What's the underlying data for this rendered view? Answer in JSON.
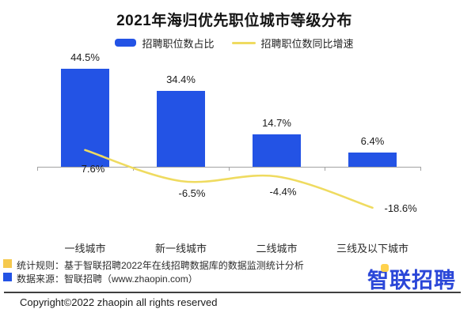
{
  "title": "2021年海归优先职位城市等级分布",
  "legend": {
    "bar_label": "招聘职位数占比",
    "line_label": "招聘职位数同比增速"
  },
  "chart_data": {
    "type": "bar",
    "combo": "bar+line",
    "title": "2021年海归优先职位城市等级分布",
    "categories": [
      "一线城市",
      "新一线城市",
      "二线城市",
      "三线及以下城市"
    ],
    "series": [
      {
        "name": "招聘职位数占比",
        "type": "bar",
        "color": "#2353e5",
        "values": [
          44.5,
          34.4,
          14.7,
          6.4
        ],
        "labels": [
          "44.5%",
          "34.4%",
          "14.7%",
          "6.4%"
        ]
      },
      {
        "name": "招聘职位数同比增速",
        "type": "line",
        "color": "#efdb60",
        "values": [
          7.6,
          -6.5,
          -4.4,
          -18.6
        ],
        "labels": [
          "7.6%",
          "-6.5%",
          "-4.4%",
          "-18.6%"
        ]
      }
    ],
    "unit": "%",
    "xlabel": "",
    "ylabel": "",
    "ylim": [
      -20,
      48
    ],
    "grid": false,
    "value_axis_visible": false,
    "legend_position": "top",
    "data_labels": true
  },
  "footnotes": [
    {
      "marker_color": "#f5c94e",
      "text": "统计规则：基于智联招聘2022年在线招聘数据库的数据监测统计分析"
    },
    {
      "marker_color": "#2353e5",
      "text": "数据来源：智联招聘（www.zhaopin.com）"
    }
  ],
  "logo": {
    "text": "智联招聘",
    "color": "#2b47d8",
    "accent_color": "#ffd24d"
  },
  "copyright": "Copyright©2022 zhaopin all rights reserved"
}
